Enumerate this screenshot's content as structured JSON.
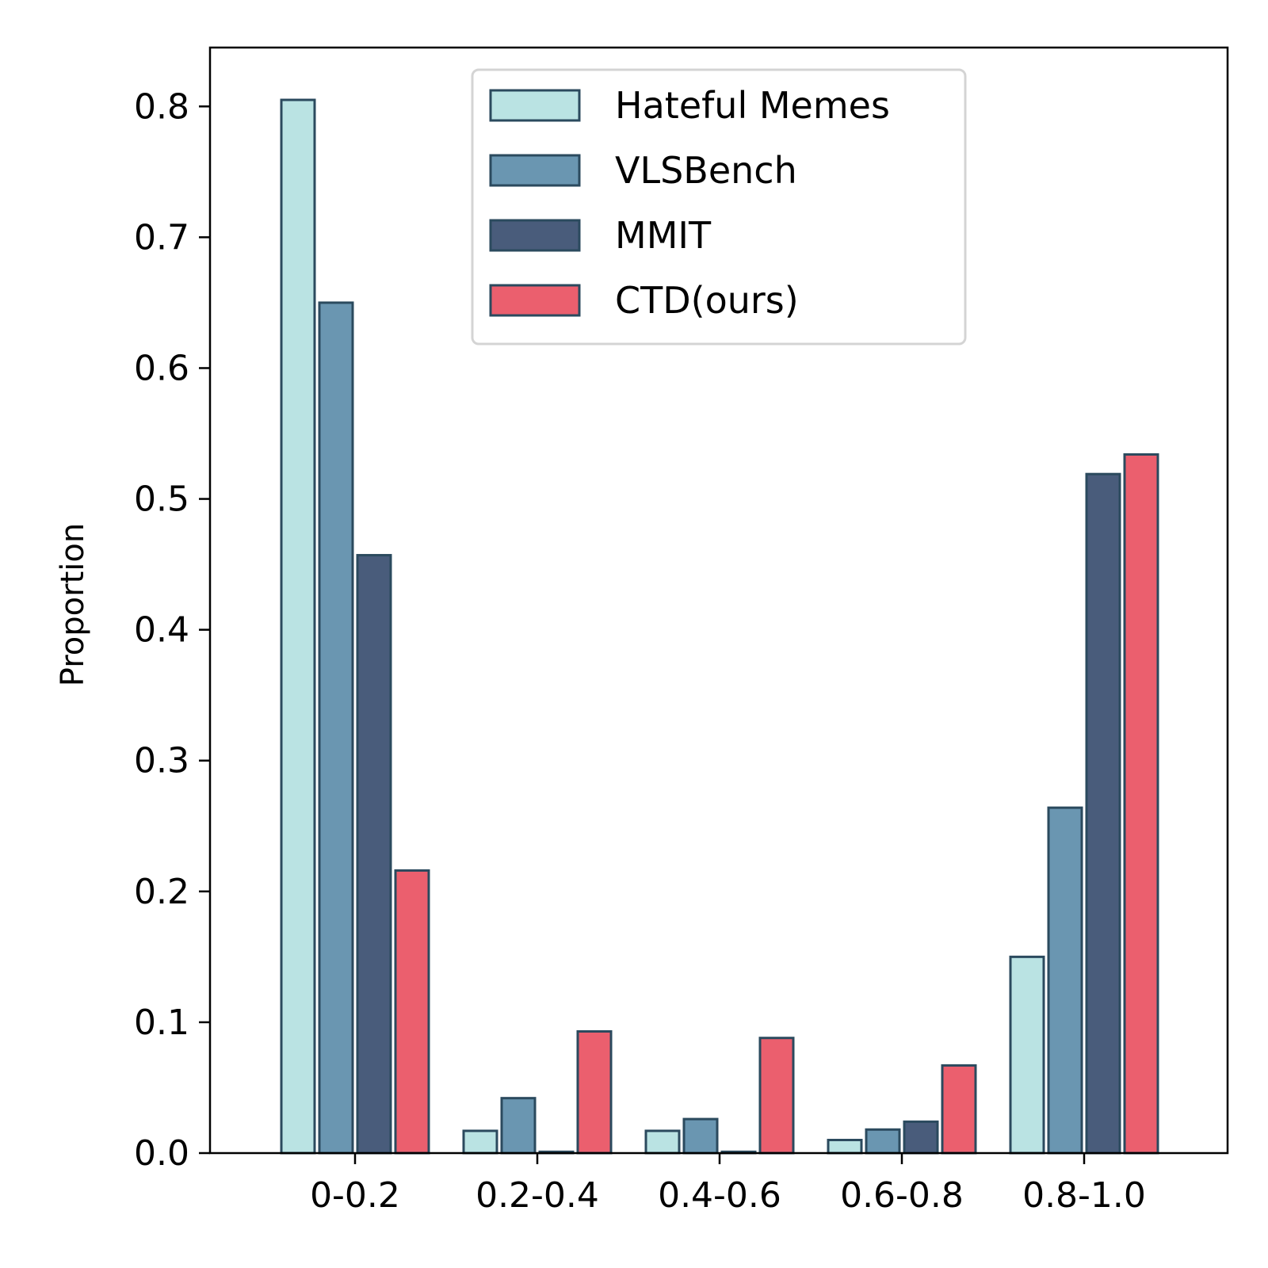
{
  "chart_data": {
    "type": "bar",
    "categories": [
      "0-0.2",
      "0.2-0.4",
      "0.4-0.6",
      "0.6-0.8",
      "0.8-1.0"
    ],
    "series": [
      {
        "name": "Hateful Memes",
        "color": "#bae3e3",
        "values": [
          0.805,
          0.017,
          0.017,
          0.01,
          0.15
        ]
      },
      {
        "name": "VLSBench",
        "color": "#6a96b1",
        "values": [
          0.65,
          0.042,
          0.026,
          0.018,
          0.264
        ]
      },
      {
        "name": "MMIT",
        "color": "#495c7b",
        "values": [
          0.457,
          0.001,
          0.001,
          0.024,
          0.519
        ]
      },
      {
        "name": "CTD(ours)",
        "color": "#eb5f6e",
        "values": [
          0.216,
          0.093,
          0.088,
          0.067,
          0.534
        ]
      }
    ],
    "edge_color": "#2b4a5e",
    "title": "",
    "xlabel": "",
    "ylabel": "Proportion",
    "ylim": [
      0,
      0.845
    ],
    "yticks": [
      "0.0",
      "0.1",
      "0.2",
      "0.3",
      "0.4",
      "0.5",
      "0.6",
      "0.7",
      "0.8"
    ],
    "grid": false,
    "legend_position": "top-center"
  }
}
